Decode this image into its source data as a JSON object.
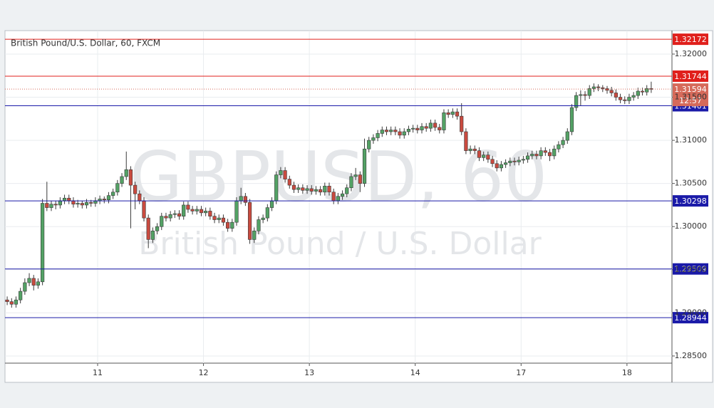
{
  "chart_data": {
    "type": "candlestick",
    "title": "British Pound/U.S. Dollar, 60, FXCM",
    "watermark": "GBPUSD, 60",
    "watermark_subtitle": "British Pound / U.S. Dollar",
    "up_color": "#53a265",
    "down_color": "#c94a3f",
    "ylim": [
      1.28417,
      1.32272
    ],
    "yticks": [
      {
        "value": 1.285,
        "label": "1.28500"
      },
      {
        "value": 1.29,
        "label": "1.29000"
      },
      {
        "value": 1.295,
        "label": "1.29500"
      },
      {
        "value": 1.3,
        "label": "1.30000"
      },
      {
        "value": 1.305,
        "label": "1.30500"
      },
      {
        "value": 1.31,
        "label": "1.31000"
      },
      {
        "value": 1.315,
        "label": "1.31500"
      },
      {
        "value": 1.32,
        "label": "1.32000"
      }
    ],
    "xlim": [
      -0.5,
      150.7
    ],
    "xticks": [
      {
        "value": 20.5,
        "label": "11"
      },
      {
        "value": 44.5,
        "label": "12"
      },
      {
        "value": 68.5,
        "label": "13"
      },
      {
        "value": 92.5,
        "label": "14"
      },
      {
        "value": 116.5,
        "label": "17"
      },
      {
        "value": 140.5,
        "label": "18"
      }
    ],
    "hlines": [
      {
        "value": 1.32172,
        "color": "#e0201c"
      },
      {
        "value": 1.31744,
        "color": "#e0201c"
      },
      {
        "value": 1.31401,
        "color": "#1a1aa8"
      },
      {
        "value": 1.30298,
        "color": "#1a1aa8"
      },
      {
        "value": 1.29509,
        "color": "#1a1aa8"
      },
      {
        "value": 1.28944,
        "color": "#1a1aa8"
      }
    ],
    "last_price": {
      "value": 1.31594,
      "countdown": "12:57",
      "color": "#d66a5a"
    },
    "ohlc": [
      [
        1.2915,
        1.2919,
        1.2909,
        1.2913
      ],
      [
        1.2913,
        1.2917,
        1.2906,
        1.291
      ],
      [
        1.291,
        1.2919,
        1.2906,
        1.2915
      ],
      [
        1.2915,
        1.2929,
        1.2911,
        1.2925
      ],
      [
        1.2925,
        1.294,
        1.2921,
        1.2935
      ],
      [
        1.2935,
        1.2946,
        1.2931,
        1.294
      ],
      [
        1.294,
        1.2944,
        1.2926,
        1.2932
      ],
      [
        1.2932,
        1.294,
        1.2928,
        1.2936
      ],
      [
        1.2936,
        1.3032,
        1.2932,
        1.3027
      ],
      [
        1.3027,
        1.3052,
        1.3018,
        1.3022
      ],
      [
        1.3022,
        1.303,
        1.3018,
        1.3026
      ],
      [
        1.3026,
        1.303,
        1.302,
        1.3025
      ],
      [
        1.3025,
        1.3034,
        1.3021,
        1.303
      ],
      [
        1.303,
        1.3037,
        1.3026,
        1.3033
      ],
      [
        1.3033,
        1.3037,
        1.3026,
        1.303
      ],
      [
        1.303,
        1.3034,
        1.3022,
        1.3026
      ],
      [
        1.3026,
        1.3031,
        1.3022,
        1.3027
      ],
      [
        1.3027,
        1.303,
        1.3021,
        1.3025
      ],
      [
        1.3025,
        1.3032,
        1.3021,
        1.3028
      ],
      [
        1.3028,
        1.3031,
        1.3023,
        1.3027
      ],
      [
        1.3027,
        1.3034,
        1.3023,
        1.303
      ],
      [
        1.303,
        1.3036,
        1.3026,
        1.3032
      ],
      [
        1.3032,
        1.3035,
        1.3027,
        1.3031
      ],
      [
        1.3031,
        1.304,
        1.3027,
        1.3036
      ],
      [
        1.3036,
        1.3044,
        1.3032,
        1.304
      ],
      [
        1.304,
        1.3054,
        1.3036,
        1.305
      ],
      [
        1.305,
        1.3062,
        1.3046,
        1.3058
      ],
      [
        1.3058,
        1.3087,
        1.3054,
        1.3066
      ],
      [
        1.3066,
        1.307,
        1.2998,
        1.3048
      ],
      [
        1.3048,
        1.3052,
        1.302,
        1.3038
      ],
      [
        1.3038,
        1.3042,
        1.3026,
        1.303
      ],
      [
        1.303,
        1.3034,
        1.3006,
        1.301
      ],
      [
        1.301,
        1.3014,
        1.2975,
        1.2985
      ],
      [
        1.2985,
        1.2999,
        1.2981,
        1.2995
      ],
      [
        1.2995,
        1.3004,
        1.2991,
        1.3
      ],
      [
        1.3,
        1.3016,
        1.2996,
        1.3012
      ],
      [
        1.3012,
        1.3016,
        1.3006,
        1.301
      ],
      [
        1.301,
        1.3018,
        1.3006,
        1.3014
      ],
      [
        1.3014,
        1.3019,
        1.301,
        1.3015
      ],
      [
        1.3015,
        1.3019,
        1.3008,
        1.3012
      ],
      [
        1.3012,
        1.3029,
        1.3008,
        1.3025
      ],
      [
        1.3025,
        1.3029,
        1.3016,
        1.302
      ],
      [
        1.302,
        1.3024,
        1.3014,
        1.3018
      ],
      [
        1.3018,
        1.3024,
        1.3014,
        1.302
      ],
      [
        1.302,
        1.3024,
        1.3012,
        1.3016
      ],
      [
        1.3016,
        1.3022,
        1.3012,
        1.3018
      ],
      [
        1.3018,
        1.3022,
        1.3008,
        1.3012
      ],
      [
        1.3012,
        1.3016,
        1.3004,
        1.3008
      ],
      [
        1.3008,
        1.3014,
        1.3004,
        1.301
      ],
      [
        1.301,
        1.3014,
        1.3001,
        1.3005
      ],
      [
        1.3005,
        1.3009,
        1.2994,
        1.2998
      ],
      [
        1.2998,
        1.3009,
        1.2994,
        1.3005
      ],
      [
        1.3005,
        1.3034,
        1.3001,
        1.303
      ],
      [
        1.303,
        1.3045,
        1.3026,
        1.3035
      ],
      [
        1.3035,
        1.3039,
        1.3024,
        1.3028
      ],
      [
        1.3028,
        1.3032,
        1.298,
        1.2985
      ],
      [
        1.2985,
        1.2999,
        1.2981,
        1.2995
      ],
      [
        1.2995,
        1.3012,
        1.2991,
        1.3008
      ],
      [
        1.3008,
        1.3014,
        1.3004,
        1.301
      ],
      [
        1.301,
        1.3026,
        1.3006,
        1.3022
      ],
      [
        1.3022,
        1.3034,
        1.3018,
        1.303
      ],
      [
        1.303,
        1.3064,
        1.3026,
        1.306
      ],
      [
        1.306,
        1.3069,
        1.3056,
        1.3065
      ],
      [
        1.3065,
        1.3069,
        1.3051,
        1.3055
      ],
      [
        1.3055,
        1.3059,
        1.3044,
        1.3048
      ],
      [
        1.3048,
        1.3052,
        1.3039,
        1.3043
      ],
      [
        1.3043,
        1.3049,
        1.3039,
        1.3045
      ],
      [
        1.3045,
        1.3049,
        1.3038,
        1.3042
      ],
      [
        1.3042,
        1.3048,
        1.3038,
        1.3044
      ],
      [
        1.3044,
        1.3048,
        1.3037,
        1.3041
      ],
      [
        1.3041,
        1.3047,
        1.3037,
        1.3043
      ],
      [
        1.3043,
        1.3047,
        1.3036,
        1.304
      ],
      [
        1.304,
        1.3051,
        1.3036,
        1.3047
      ],
      [
        1.3047,
        1.3051,
        1.3036,
        1.304
      ],
      [
        1.304,
        1.3044,
        1.3026,
        1.303
      ],
      [
        1.303,
        1.3039,
        1.3026,
        1.3035
      ],
      [
        1.3035,
        1.3042,
        1.3031,
        1.3038
      ],
      [
        1.3038,
        1.3049,
        1.3034,
        1.3045
      ],
      [
        1.3045,
        1.3062,
        1.3041,
        1.3058
      ],
      [
        1.3058,
        1.3068,
        1.3054,
        1.306
      ],
      [
        1.306,
        1.3064,
        1.304,
        1.305
      ],
      [
        1.305,
        1.3102,
        1.3046,
        1.309
      ],
      [
        1.309,
        1.3104,
        1.3086,
        1.31
      ],
      [
        1.31,
        1.3107,
        1.3096,
        1.3103
      ],
      [
        1.3103,
        1.3112,
        1.3099,
        1.3108
      ],
      [
        1.3108,
        1.3116,
        1.3104,
        1.3112
      ],
      [
        1.3112,
        1.3116,
        1.3106,
        1.311
      ],
      [
        1.311,
        1.3116,
        1.3106,
        1.3112
      ],
      [
        1.3112,
        1.3116,
        1.3106,
        1.311
      ],
      [
        1.311,
        1.3114,
        1.3102,
        1.3106
      ],
      [
        1.3106,
        1.3114,
        1.3102,
        1.311
      ],
      [
        1.311,
        1.3117,
        1.3106,
        1.3113
      ],
      [
        1.3113,
        1.3118,
        1.3109,
        1.3114
      ],
      [
        1.3114,
        1.3118,
        1.3108,
        1.3112
      ],
      [
        1.3112,
        1.312,
        1.3108,
        1.3116
      ],
      [
        1.3116,
        1.312,
        1.311,
        1.3114
      ],
      [
        1.3114,
        1.3124,
        1.311,
        1.312
      ],
      [
        1.312,
        1.3124,
        1.3111,
        1.3115
      ],
      [
        1.3115,
        1.3119,
        1.3108,
        1.3112
      ],
      [
        1.3112,
        1.3136,
        1.3108,
        1.3132
      ],
      [
        1.3132,
        1.3136,
        1.3126,
        1.313
      ],
      [
        1.313,
        1.3137,
        1.3126,
        1.3133
      ],
      [
        1.3133,
        1.3137,
        1.3124,
        1.3128
      ],
      [
        1.3128,
        1.3143,
        1.3106,
        1.311
      ],
      [
        1.311,
        1.3114,
        1.3084,
        1.3088
      ],
      [
        1.3088,
        1.3094,
        1.3084,
        1.309
      ],
      [
        1.309,
        1.3094,
        1.3084,
        1.3088
      ],
      [
        1.3088,
        1.3092,
        1.3076,
        1.308
      ],
      [
        1.308,
        1.3087,
        1.3076,
        1.3083
      ],
      [
        1.3083,
        1.3087,
        1.3074,
        1.3078
      ],
      [
        1.3078,
        1.3082,
        1.3069,
        1.3073
      ],
      [
        1.3073,
        1.3077,
        1.3064,
        1.3068
      ],
      [
        1.3068,
        1.3076,
        1.3064,
        1.3072
      ],
      [
        1.3072,
        1.3078,
        1.3068,
        1.3074
      ],
      [
        1.3074,
        1.308,
        1.307,
        1.3076
      ],
      [
        1.3076,
        1.308,
        1.3071,
        1.3075
      ],
      [
        1.3075,
        1.3081,
        1.3071,
        1.3077
      ],
      [
        1.3077,
        1.3082,
        1.3073,
        1.3078
      ],
      [
        1.3078,
        1.3086,
        1.3074,
        1.3082
      ],
      [
        1.3082,
        1.3088,
        1.3078,
        1.3084
      ],
      [
        1.3084,
        1.3088,
        1.3078,
        1.3082
      ],
      [
        1.3082,
        1.3092,
        1.3078,
        1.3088
      ],
      [
        1.3088,
        1.3092,
        1.3082,
        1.3086
      ],
      [
        1.3086,
        1.309,
        1.3076,
        1.3082
      ],
      [
        1.3082,
        1.3094,
        1.3078,
        1.309
      ],
      [
        1.309,
        1.3099,
        1.3086,
        1.3095
      ],
      [
        1.3095,
        1.3104,
        1.3091,
        1.31
      ],
      [
        1.31,
        1.3114,
        1.3096,
        1.311
      ],
      [
        1.311,
        1.3142,
        1.3106,
        1.3138
      ],
      [
        1.3138,
        1.3156,
        1.3134,
        1.3152
      ],
      [
        1.3152,
        1.3158,
        1.314,
        1.3153
      ],
      [
        1.3153,
        1.3157,
        1.3146,
        1.3152
      ],
      [
        1.3152,
        1.3164,
        1.3148,
        1.316
      ],
      [
        1.316,
        1.3166,
        1.3156,
        1.3162
      ],
      [
        1.3162,
        1.3165,
        1.3157,
        1.3161
      ],
      [
        1.3161,
        1.3164,
        1.3156,
        1.316
      ],
      [
        1.316,
        1.3163,
        1.3154,
        1.3158
      ],
      [
        1.3158,
        1.3162,
        1.3151,
        1.3155
      ],
      [
        1.3155,
        1.3159,
        1.3146,
        1.315
      ],
      [
        1.315,
        1.3154,
        1.3143,
        1.3147
      ],
      [
        1.3147,
        1.3151,
        1.3142,
        1.3146
      ],
      [
        1.3146,
        1.3154,
        1.3142,
        1.315
      ],
      [
        1.315,
        1.3156,
        1.3146,
        1.3152
      ],
      [
        1.3152,
        1.3161,
        1.3148,
        1.3157
      ],
      [
        1.3157,
        1.3161,
        1.3152,
        1.3156
      ],
      [
        1.3156,
        1.3164,
        1.3152,
        1.316
      ],
      [
        1.316,
        1.3168,
        1.3155,
        1.31594
      ]
    ]
  }
}
